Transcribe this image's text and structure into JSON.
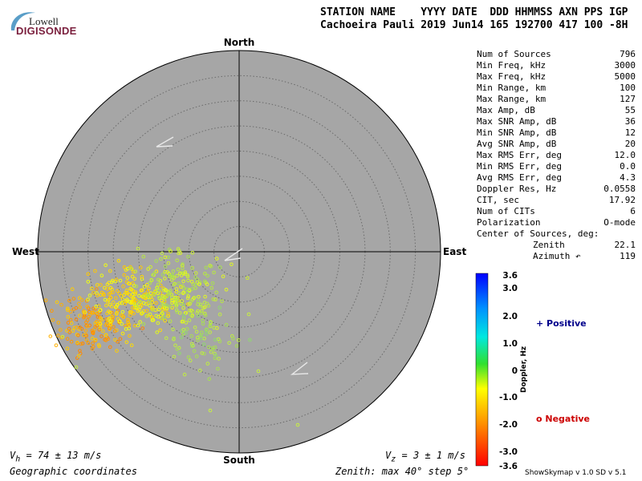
{
  "logo": {
    "top": "Lowell",
    "bottom": "DIGISONDE"
  },
  "header": {
    "line1": "STATION NAME    YYYY DATE  DDD HHMMSS AXN PPS IGP",
    "line2": "Cachoeira Pauli 2019 Jun14 165 192700 417 100 -8H"
  },
  "directions": {
    "north": "North",
    "south": "South",
    "east": "East",
    "west": "West"
  },
  "stats": [
    {
      "label": "Num of Sources",
      "value": "796"
    },
    {
      "label": "Min Freq, kHz",
      "value": "3000"
    },
    {
      "label": "Max Freq, kHz",
      "value": "5000"
    },
    {
      "label": "Min Range, km",
      "value": "100"
    },
    {
      "label": "Max Range, km",
      "value": "127"
    },
    {
      "label": "Max Amp, dB",
      "value": "55"
    },
    {
      "label": "Max SNR Amp, dB",
      "value": "36"
    },
    {
      "label": "Min SNR Amp, dB",
      "value": "12"
    },
    {
      "label": "Avg SNR Amp, dB",
      "value": "20"
    },
    {
      "label": "Max RMS Err, deg",
      "value": "12.0"
    },
    {
      "label": "Min RMS Err, deg",
      "value": "0.0"
    },
    {
      "label": "Avg RMS Err, deg",
      "value": "4.3"
    },
    {
      "label": "Doppler Res, Hz",
      "value": "0.0558"
    },
    {
      "label": "CIT, sec",
      "value": "17.92"
    },
    {
      "label": "Num of CITs",
      "value": "6"
    },
    {
      "label": "Polarization",
      "value": "O-mode"
    },
    {
      "label": "Center of Sources, deg:",
      "value": ""
    }
  ],
  "center": [
    {
      "label": "Zenith",
      "value": "22.1"
    },
    {
      "label": "Azimuth ↶",
      "value": "119"
    }
  ],
  "colorbar": {
    "title": "Doppler, Hz",
    "ticks": [
      "3.6",
      "3.0",
      "2.0",
      "1.0",
      "0",
      "-1.0",
      "-2.0",
      "-3.0",
      "-3.6"
    ]
  },
  "legend": {
    "positive": "+ Positive",
    "negative": "o Negative"
  },
  "footer": {
    "vh": "V",
    "vh_sub": "h",
    "vh_val": " = 74 ± 13 m/s",
    "vz": "V",
    "vz_sub": "z",
    "vz_val": " = 3 ± 1 m/s",
    "coords": "Geographic coordinates",
    "zenith": "Zenith: max 40°  step 5°",
    "version": "ShowSkymap v 1.0   SD v 5.1"
  },
  "colors": {
    "plot_bg": "#a6a6a6",
    "positive": "#00008b",
    "negative": "#cc0000"
  }
}
